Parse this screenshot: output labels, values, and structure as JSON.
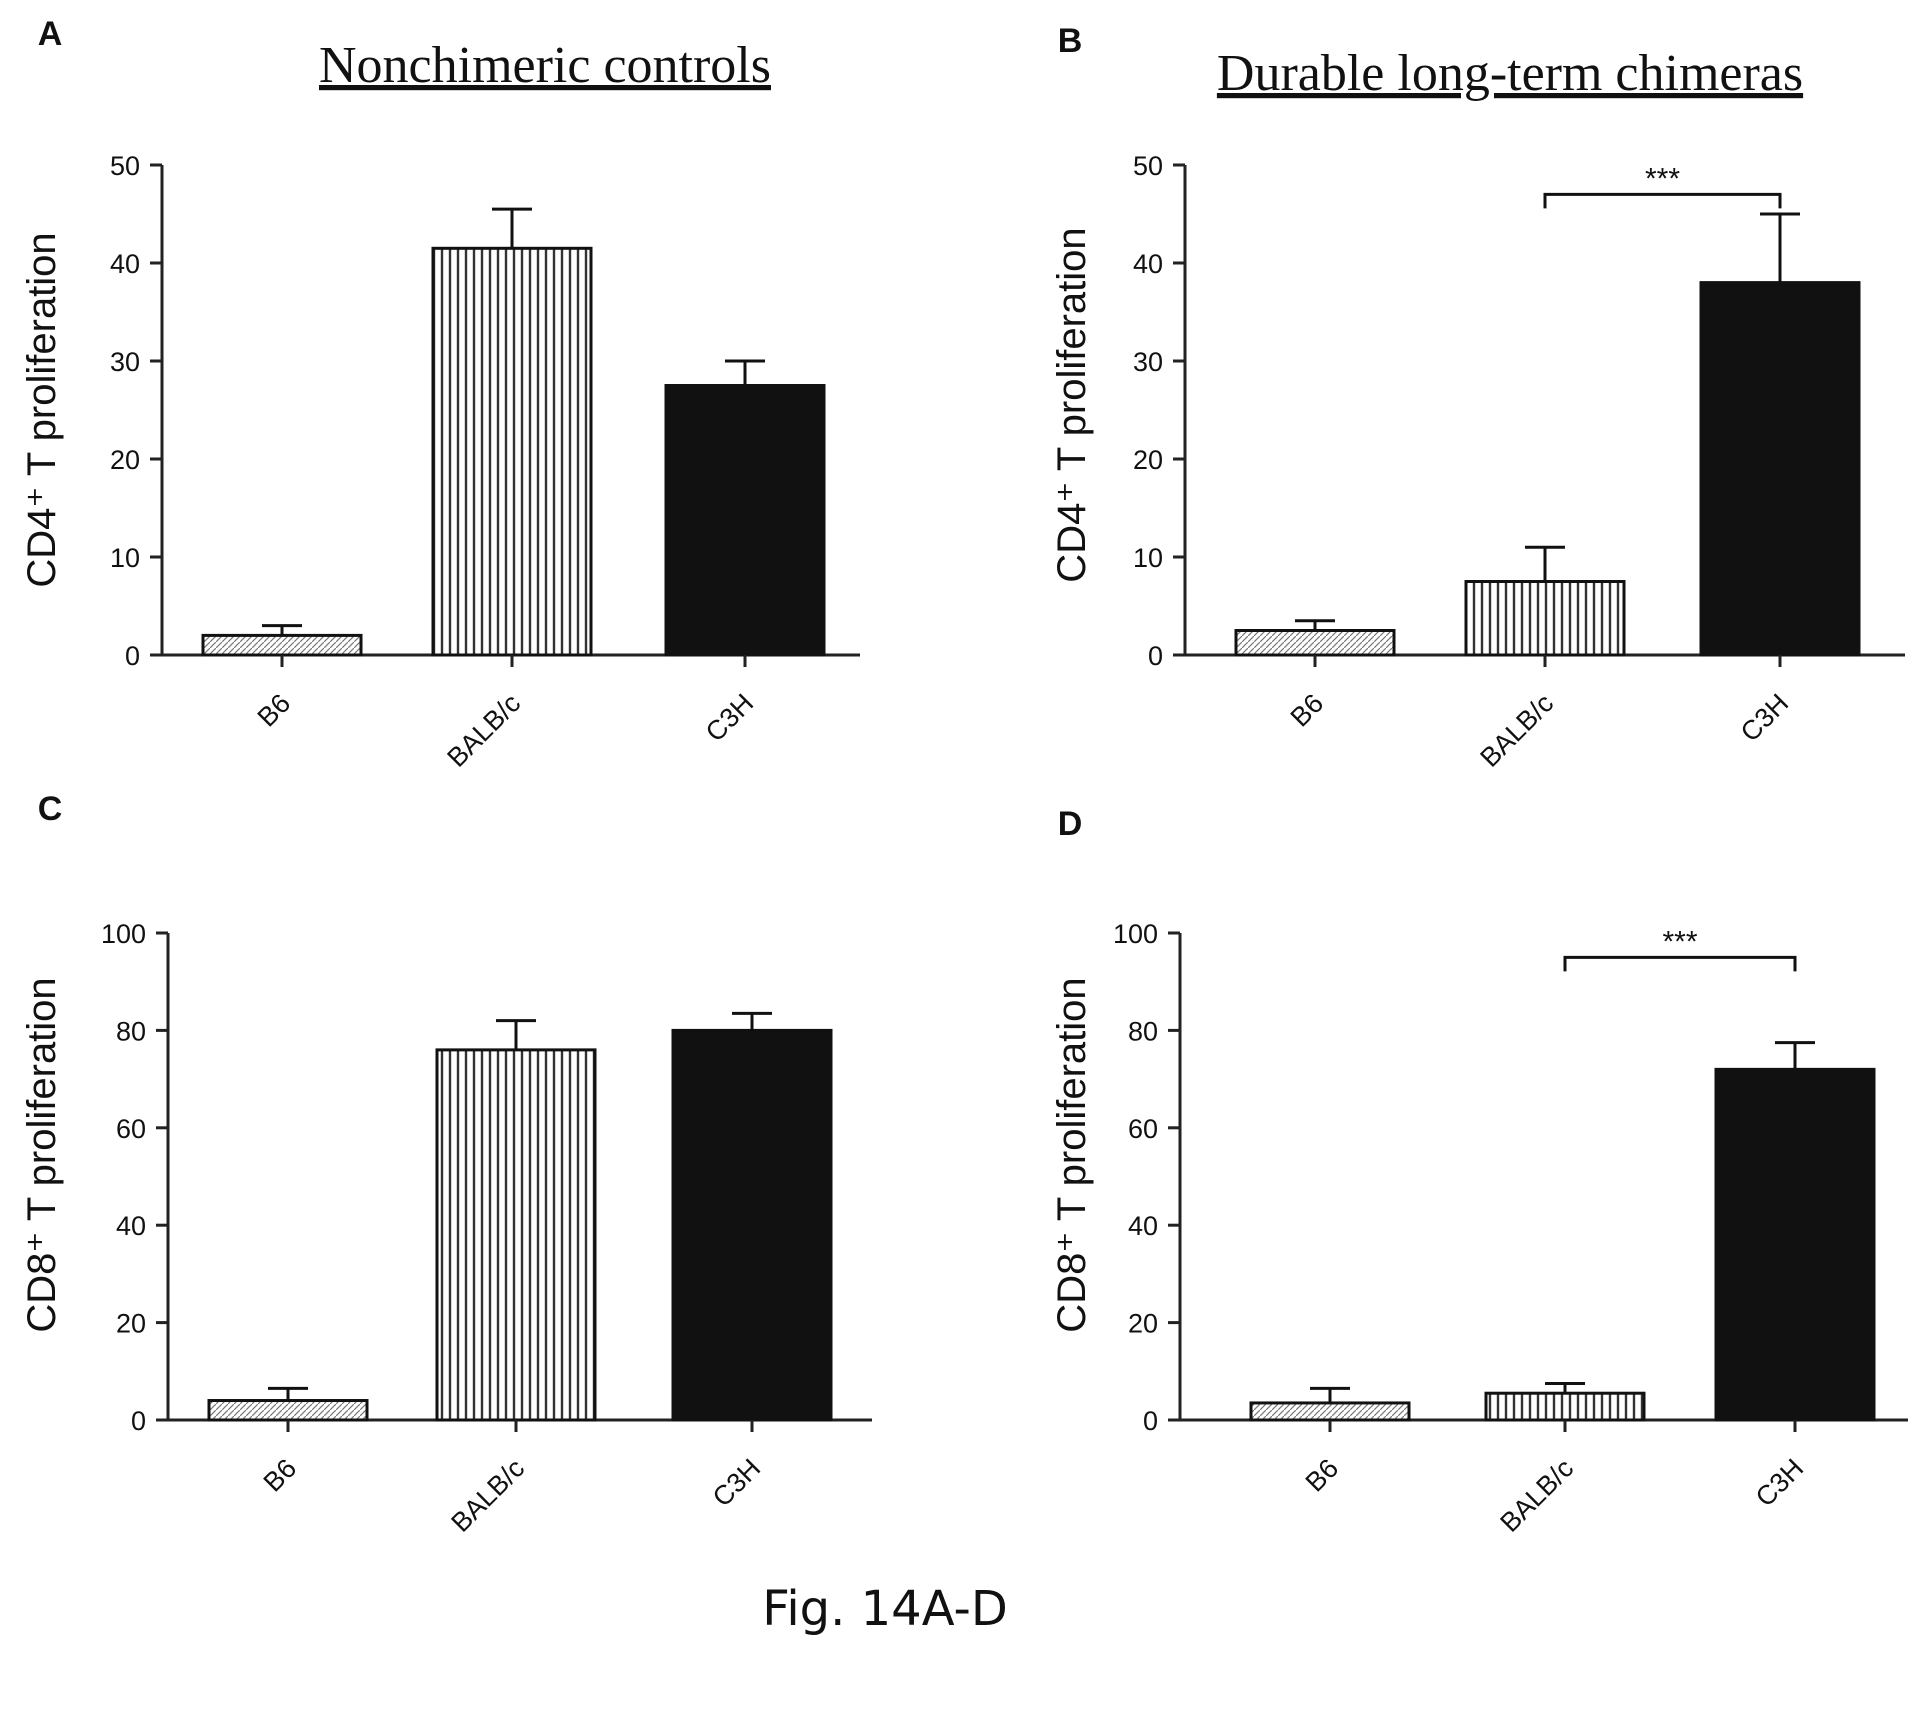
{
  "figure": {
    "caption": "Fig. 14A-D"
  },
  "styles": {
    "B6": "light-hatch",
    "BALB/c": "vertical-stripes",
    "C3H": "solid-black"
  },
  "chart_data": [
    {
      "letter": "A",
      "title": "Nonchimeric controls",
      "type": "bar",
      "ylabel": "CD4⁺ T proliferation",
      "ylim": [
        0,
        50
      ],
      "yticks": [
        "0",
        "10",
        "20",
        "30",
        "40",
        "50"
      ],
      "categories": [
        "B6",
        "BALB/c",
        "C3H"
      ],
      "values": [
        2,
        41.5,
        27.5
      ],
      "errors": [
        1,
        4,
        2.5
      ],
      "significance": null
    },
    {
      "letter": "B",
      "title": "Durable long-term chimeras",
      "type": "bar",
      "ylabel": "CD4⁺ T proliferation",
      "ylim": [
        0,
        50
      ],
      "yticks": [
        "0",
        "10",
        "20",
        "30",
        "40",
        "50"
      ],
      "categories": [
        "B6",
        "BALB/c",
        "C3H"
      ],
      "values": [
        2.5,
        7.5,
        38
      ],
      "errors": [
        1,
        3.5,
        7
      ],
      "significance": {
        "from": 1,
        "to": 2,
        "label": "***",
        "y": 47
      }
    },
    {
      "letter": "C",
      "title": "",
      "type": "bar",
      "ylabel": "CD8⁺ T proliferation",
      "ylim": [
        0,
        100
      ],
      "yticks": [
        "0",
        "20",
        "40",
        "60",
        "80",
        "100"
      ],
      "categories": [
        "B6",
        "BALB/c",
        "C3H"
      ],
      "values": [
        4,
        76,
        80
      ],
      "errors": [
        2.5,
        6,
        3.5
      ],
      "significance": null
    },
    {
      "letter": "D",
      "title": "",
      "type": "bar",
      "ylabel": "CD8⁺ T proliferation",
      "ylim": [
        0,
        100
      ],
      "yticks": [
        "0",
        "20",
        "40",
        "60",
        "80",
        "100"
      ],
      "categories": [
        "B6",
        "BALB/c",
        "C3H"
      ],
      "values": [
        3.5,
        5.5,
        72
      ],
      "errors": [
        3,
        2,
        5.5
      ],
      "significance": {
        "from": 1,
        "to": 2,
        "label": "***",
        "y": 95
      }
    }
  ]
}
